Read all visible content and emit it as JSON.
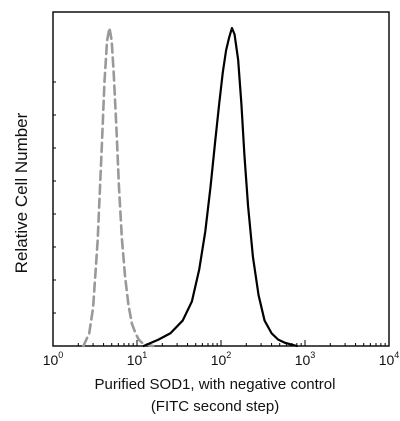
{
  "chart_data": {
    "type": "line",
    "title": "",
    "xlabel_line1": "Purified  SOD1,  with negative control",
    "xlabel_line2": "(FITC second step)",
    "ylabel": "Relative Cell Number",
    "xscale": "log",
    "xlim": [
      1,
      10000
    ],
    "ylim": [
      0,
      1.0
    ],
    "grid": false,
    "legend": "none",
    "x_ticks": [
      {
        "base": "10",
        "exp": "0",
        "value": 1
      },
      {
        "base": "10",
        "exp": "1",
        "value": 10
      },
      {
        "base": "10",
        "exp": "2",
        "value": 100
      },
      {
        "base": "10",
        "exp": "3",
        "value": 1000
      },
      {
        "base": "10",
        "exp": "4",
        "value": 10000
      }
    ],
    "series": [
      {
        "color": "#999999",
        "style": "dashed",
        "x": [
          2.3,
          2.7,
          3.0,
          3.4,
          3.8,
          4.1,
          4.4,
          4.7,
          5.0,
          5.3,
          5.7,
          6.1,
          6.6,
          7.2,
          7.9,
          8.7,
          9.6,
          10.5,
          11.5,
          13.0,
          15.5
        ],
        "y": [
          0.0,
          0.04,
          0.12,
          0.33,
          0.62,
          0.83,
          0.96,
          1.0,
          0.96,
          0.85,
          0.68,
          0.5,
          0.34,
          0.22,
          0.13,
          0.07,
          0.04,
          0.02,
          0.01,
          0.005,
          0.0
        ]
      },
      {
        "color": "#000000",
        "style": "solid",
        "x": [
          12,
          18,
          25,
          35,
          45,
          55,
          65,
          75,
          85,
          95,
          105,
          115,
          125,
          135,
          145,
          160,
          175,
          190,
          210,
          240,
          280,
          330,
          400,
          480,
          580,
          680,
          800
        ],
        "y": [
          0.0,
          0.02,
          0.04,
          0.08,
          0.14,
          0.24,
          0.36,
          0.5,
          0.64,
          0.76,
          0.86,
          0.93,
          0.97,
          1.0,
          0.98,
          0.9,
          0.76,
          0.6,
          0.44,
          0.28,
          0.16,
          0.08,
          0.04,
          0.02,
          0.01,
          0.005,
          0.0
        ]
      }
    ]
  }
}
